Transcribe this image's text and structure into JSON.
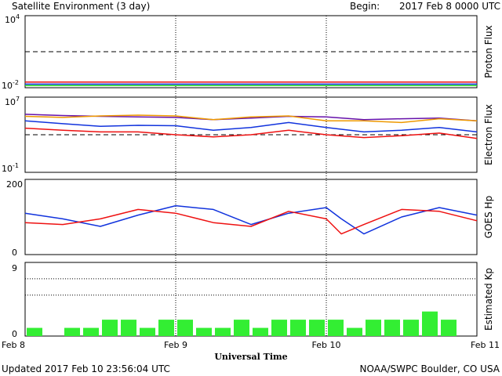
{
  "header": {
    "title": "Satellite Environment (3 day)",
    "begin_label": "Begin:",
    "begin_value": "2017 Feb 8 0000 UTC"
  },
  "footer": {
    "updated": "Updated 2017 Feb 10 23:56:04 UTC",
    "credit": "NOAA/SWPC Boulder, CO USA"
  },
  "x_axis": {
    "label": "Universal Time",
    "ticks": [
      "Feb 8",
      "Feb 9",
      "Feb 10",
      "Feb 11"
    ],
    "range_days": [
      0,
      3
    ]
  },
  "colors": {
    "red": "#ee1111",
    "blue": "#1133dd",
    "green": "#22dd22",
    "orange": "#ee9900",
    "purple": "#6611aa",
    "kp_bar": "#33ee33"
  },
  "chart_data": [
    {
      "type": "line",
      "ylabel": "Proton Flux",
      "yscale": "log",
      "ylim": [
        0.01,
        10000
      ],
      "y_ticks": [
        {
          "base": "10",
          "exp": "4"
        },
        {
          "base": "10",
          "exp": "-2"
        }
      ],
      "reference_line": 10,
      "x": [
        0,
        0.5,
        1,
        1.5,
        2,
        2.5,
        3
      ],
      "series": [
        {
          "color": "red",
          "values": [
            0.03,
            0.03,
            0.03,
            0.03,
            0.03,
            0.03,
            0.03
          ]
        },
        {
          "color": "blue",
          "values": [
            0.02,
            0.02,
            0.02,
            0.02,
            0.02,
            0.02,
            0.02
          ]
        },
        {
          "color": "green",
          "values": [
            0.015,
            0.015,
            0.015,
            0.015,
            0.015,
            0.015,
            0.015
          ]
        }
      ]
    },
    {
      "type": "line",
      "ylabel": "Electron Flux",
      "yscale": "log",
      "ylim": [
        0.1,
        10000000
      ],
      "y_ticks": [
        {
          "base": "10",
          "exp": "7"
        },
        {
          "base": "10",
          "exp": "-1"
        }
      ],
      "reference_line": 1000,
      "x": [
        0,
        0.25,
        0.5,
        0.75,
        1.0,
        1.25,
        1.5,
        1.75,
        2.0,
        2.25,
        2.5,
        2.75,
        3.0
      ],
      "series": [
        {
          "color": "purple",
          "values": [
            150000,
            110000,
            90000,
            80000,
            70000,
            40000,
            60000,
            90000,
            80000,
            40000,
            50000,
            60000,
            30000
          ]
        },
        {
          "color": "orange",
          "values": [
            90000,
            70000,
            100000,
            120000,
            100000,
            40000,
            80000,
            100000,
            30000,
            30000,
            20000,
            50000,
            30000
          ]
        },
        {
          "color": "blue",
          "values": [
            30000,
            15000,
            8000,
            10000,
            9000,
            3000,
            6000,
            20000,
            6000,
            2000,
            3000,
            6000,
            2000
          ]
        },
        {
          "color": "red",
          "values": [
            5000,
            3000,
            2000,
            2000,
            1000,
            600,
            1000,
            3000,
            1000,
            500,
            800,
            1500,
            400
          ]
        }
      ]
    },
    {
      "type": "line",
      "ylabel": "GOES Hp",
      "ylim": [
        0,
        200
      ],
      "y_ticks": [
        "200",
        "0"
      ],
      "x": [
        0,
        0.25,
        0.5,
        0.75,
        1.0,
        1.25,
        1.5,
        1.75,
        2.0,
        2.1,
        2.25,
        2.5,
        2.75,
        3.0
      ],
      "series": [
        {
          "color": "blue",
          "values": [
            110,
            95,
            75,
            105,
            130,
            120,
            80,
            110,
            125,
            95,
            55,
            100,
            125,
            105
          ]
        },
        {
          "color": "red",
          "values": [
            85,
            80,
            95,
            120,
            110,
            85,
            75,
            115,
            95,
            55,
            80,
            120,
            115,
            90
          ]
        }
      ]
    },
    {
      "type": "bar",
      "ylabel": "Estimated Kp",
      "ylim": [
        0,
        9
      ],
      "y_ticks": [
        "9",
        "0"
      ],
      "dotted_levels": [
        5,
        7,
        9
      ],
      "bin_hours": 3,
      "values": [
        1,
        0,
        1,
        1,
        2,
        2,
        1,
        2,
        2,
        1,
        1,
        2,
        1,
        2,
        2,
        2,
        2,
        1,
        2,
        2,
        2,
        3,
        2,
        0
      ]
    }
  ]
}
